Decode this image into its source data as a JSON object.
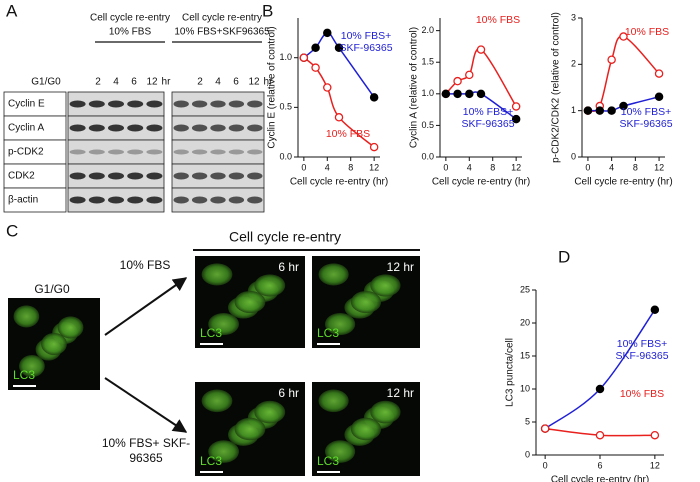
{
  "panel_labels": [
    "A",
    "B",
    "C",
    "D"
  ],
  "blot": {
    "header_left": [
      "Cell cycle re-entry",
      "10% FBS"
    ],
    "header_right": [
      "Cell cycle re-entry",
      "10% FBS+SKF96365"
    ],
    "lanes_left": [
      "G1/G0",
      "2",
      "4",
      "6",
      "12"
    ],
    "lanes_right": [
      "2",
      "4",
      "6",
      "12"
    ],
    "unit": "hr",
    "proteins": [
      "Cyclin E",
      "Cyclin A",
      "p-CDK2",
      "CDK2",
      "β-actin"
    ]
  },
  "micrographs": {
    "title": "Cell cycle re-entry",
    "control": "G1/G0",
    "conditions": [
      "10% FBS",
      "10% FBS+ SKF-96365"
    ],
    "times": [
      "6 hr",
      "12 hr"
    ],
    "stain": "LC3"
  },
  "chart_data": [
    {
      "type": "line",
      "xlabel": "Cell cycle re-entry (hr)",
      "ylabel": "Cyclin E (relative of control)",
      "x": [
        0,
        2,
        4,
        6,
        12
      ],
      "xlim": [
        -1,
        13
      ],
      "xticks": [
        0,
        4,
        8,
        12
      ],
      "ylim": [
        0,
        1.4
      ],
      "yticks": [
        {
          "value": 0,
          "label": "0.0"
        },
        {
          "value": 0.5,
          "label": "0.5"
        },
        {
          "value": 1,
          "label": "1.0"
        }
      ],
      "series": [
        {
          "name": "10% FBS+ SKF-96365",
          "color": "#1f1fd6",
          "marker": "filled",
          "marker_color": "#000000",
          "values": [
            1.0,
            1.1,
            1.25,
            1.1,
            0.6
          ]
        },
        {
          "name": "10% FBS",
          "color": "#e8201e",
          "marker": "open",
          "marker_color": "#e8201e",
          "values": [
            1.0,
            0.9,
            0.7,
            0.4,
            0.1
          ]
        }
      ]
    },
    {
      "type": "line",
      "xlabel": "Cell cycle re-entry (hr)",
      "ylabel": "Cyclin A (relative of control)",
      "x": [
        0,
        2,
        4,
        6,
        12
      ],
      "xlim": [
        -1,
        13
      ],
      "xticks": [
        0,
        4,
        8,
        12
      ],
      "ylim": [
        0,
        2.2
      ],
      "yticks": [
        {
          "value": 0,
          "label": "0.0"
        },
        {
          "value": 0.5,
          "label": "0.5"
        },
        {
          "value": 1,
          "label": "1.0"
        },
        {
          "value": 1.5,
          "label": "1.5"
        },
        {
          "value": 2,
          "label": "2.0"
        }
      ],
      "series": [
        {
          "name": "10% FBS",
          "color": "#e8201e",
          "marker": "open",
          "marker_color": "#e8201e",
          "values": [
            1.0,
            1.2,
            1.3,
            1.7,
            0.8
          ]
        },
        {
          "name": "10% FBS+ SKF-96365",
          "color": "#1f1fd6",
          "marker": "filled",
          "marker_color": "#000000",
          "values": [
            1.0,
            1.0,
            1.0,
            1.0,
            0.6
          ]
        }
      ]
    },
    {
      "type": "line",
      "xlabel": "Cell cycle re-entry (hr)",
      "ylabel": "p-CDK2/CDK2 (relative of control)",
      "x": [
        0,
        2,
        4,
        6,
        12
      ],
      "xlim": [
        -1,
        13
      ],
      "xticks": [
        0,
        4,
        8,
        12
      ],
      "ylim": [
        0,
        3
      ],
      "yticks": [
        0,
        1,
        2,
        3
      ],
      "series": [
        {
          "name": "10% FBS",
          "color": "#e8201e",
          "marker": "open",
          "marker_color": "#e8201e",
          "values": [
            1.0,
            1.1,
            2.1,
            2.6,
            1.8
          ]
        },
        {
          "name": "10% FBS+ SKF-96365",
          "color": "#1f1fd6",
          "marker": "filled",
          "marker_color": "#000000",
          "values": [
            1.0,
            1.0,
            1.0,
            1.1,
            1.3
          ]
        }
      ]
    },
    {
      "type": "line",
      "xlabel": "Cell cycle re-entry (hr)",
      "ylabel": "LC3 puncta/cell",
      "x": [
        0,
        6,
        12
      ],
      "xlim": [
        -1,
        13
      ],
      "xticks": [
        0,
        6,
        12
      ],
      "ylim": [
        0,
        25
      ],
      "yticks": [
        0,
        5,
        10,
        15,
        20,
        25
      ],
      "series": [
        {
          "name": "10% FBS+ SKF-96365",
          "color": "#1f1fd6",
          "marker": "filled",
          "marker_color": "#000000",
          "values": [
            4,
            10,
            22
          ]
        },
        {
          "name": "10% FBS",
          "color": "#e8201e",
          "marker": "open",
          "marker_color": "#e8201e",
          "values": [
            4,
            3,
            3
          ]
        }
      ]
    }
  ]
}
